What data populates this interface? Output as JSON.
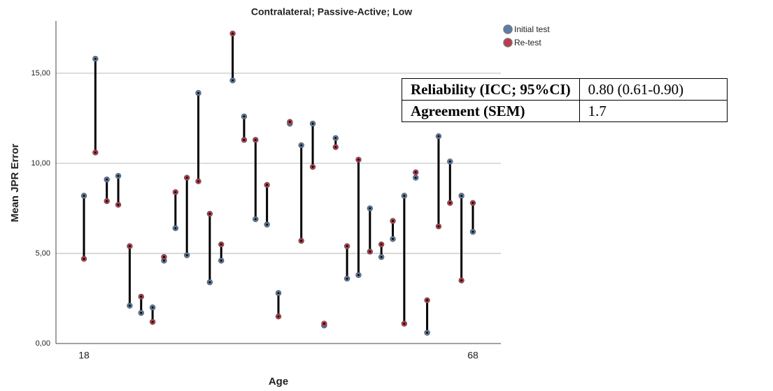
{
  "chart_data": {
    "type": "dumbbell",
    "title": "Contralateral; Passive-Active; Low",
    "x_label": "Age",
    "y_label": "Mean JPR Error",
    "categories": [
      "18",
      null,
      null,
      null,
      null,
      null,
      null,
      null,
      null,
      null,
      null,
      null,
      null,
      null,
      null,
      null,
      null,
      null,
      null,
      null,
      null,
      null,
      null,
      null,
      null,
      null,
      null,
      null,
      null,
      null,
      null,
      null,
      null,
      null,
      "68"
    ],
    "series": [
      {
        "name": "Initial test",
        "color": "#5b7fa8",
        "values": [
          8.2,
          15.8,
          9.1,
          9.3,
          2.1,
          1.7,
          2.0,
          4.6,
          6.4,
          4.9,
          13.9,
          3.4,
          4.6,
          14.6,
          12.6,
          6.9,
          6.6,
          2.8,
          12.2,
          11.0,
          12.2,
          1.0,
          11.4,
          3.6,
          3.8,
          7.5,
          4.8,
          5.8,
          8.2,
          9.2,
          0.6,
          11.5,
          10.1,
          8.2,
          6.2
        ]
      },
      {
        "name": "Re-test",
        "color": "#c2384c",
        "values": [
          4.7,
          10.6,
          7.9,
          7.7,
          5.4,
          2.6,
          1.2,
          4.8,
          8.4,
          9.2,
          9.0,
          7.2,
          5.5,
          17.2,
          11.3,
          11.3,
          8.8,
          1.5,
          12.3,
          5.7,
          9.8,
          1.1,
          10.9,
          5.4,
          10.2,
          5.1,
          5.5,
          6.8,
          1.1,
          9.5,
          2.4,
          6.5,
          7.8,
          3.5,
          7.8
        ]
      }
    ],
    "ylim": [
      0,
      17.9
    ],
    "yticks": [
      {
        "value": 0,
        "label": "0,00"
      },
      {
        "value": 5,
        "label": "5,00"
      },
      {
        "value": 10,
        "label": "10,00"
      },
      {
        "value": 15,
        "label": "15,00"
      }
    ],
    "grid": true,
    "legend": "top-right"
  },
  "table": {
    "rows": [
      [
        "Reliability (ICC; 95%CI)",
        "0.80 (0.61-0.90)"
      ],
      [
        "Agreement (SEM)",
        "1.7"
      ]
    ]
  }
}
